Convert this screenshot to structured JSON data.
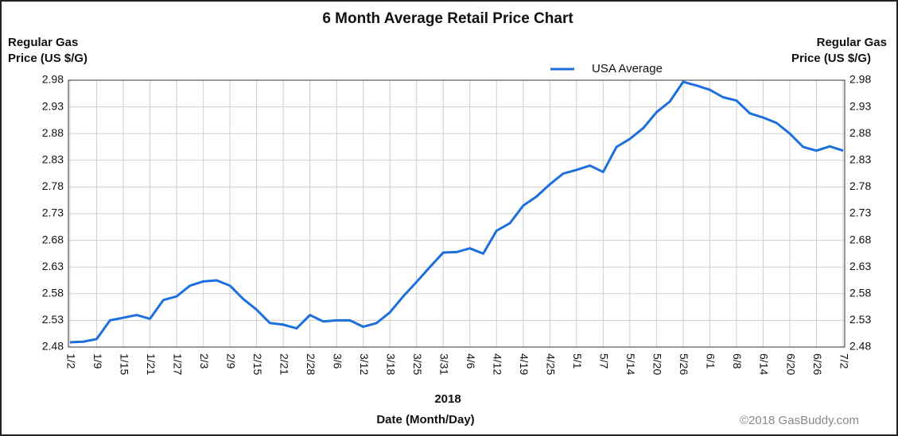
{
  "chart_data": {
    "type": "line",
    "title": "6 Month Average Retail Price Chart",
    "y_label": [
      "Regular Gas",
      "Price (US $/G)"
    ],
    "y2_label": [
      "Regular Gas",
      "Price (US $/G)"
    ],
    "x_label": [
      "2018",
      "Date (Month/Day)"
    ],
    "credit": "©2018 GasBuddy.com",
    "categories": [
      "1/2",
      null,
      "1/9",
      null,
      "1/15",
      null,
      "1/21",
      null,
      "1/27",
      null,
      "2/3",
      null,
      "2/9",
      null,
      "2/15",
      null,
      "2/21",
      null,
      "2/28",
      null,
      "3/6",
      null,
      "3/12",
      null,
      "3/18",
      null,
      "3/25",
      null,
      "3/31",
      null,
      "4/6",
      null,
      "4/12",
      null,
      "4/19",
      null,
      "4/25",
      null,
      "5/1",
      null,
      "5/7",
      null,
      "5/14",
      null,
      "5/20",
      null,
      "5/26",
      null,
      "6/1",
      null,
      "6/8",
      null,
      "6/14",
      null,
      "6/20",
      null,
      "6/26",
      null,
      "7/2"
    ],
    "series": [
      {
        "name": "USA Average",
        "color": "#1c6fdc",
        "values": [
          2.489,
          2.49,
          2.495,
          2.53,
          2.535,
          2.54,
          2.533,
          2.568,
          2.575,
          2.595,
          2.603,
          2.605,
          2.595,
          2.57,
          2.55,
          2.525,
          2.522,
          2.515,
          2.54,
          2.528,
          2.53,
          2.53,
          2.518,
          2.525,
          2.545,
          2.575,
          2.602,
          2.63,
          2.657,
          2.658,
          2.665,
          2.655,
          2.698,
          2.712,
          2.745,
          2.762,
          2.785,
          2.805,
          2.812,
          2.82,
          2.808,
          2.855,
          2.87,
          2.89,
          2.92,
          2.94,
          2.977,
          2.97,
          2.962,
          2.948,
          2.942,
          2.918,
          2.91,
          2.9,
          2.88,
          2.855,
          2.848,
          2.856,
          2.848
        ]
      }
    ],
    "ylim": [
      2.48,
      2.98
    ],
    "yticks": [
      2.48,
      2.53,
      2.58,
      2.63,
      2.68,
      2.73,
      2.78,
      2.83,
      2.88,
      2.93,
      2.98
    ],
    "y2lim": [
      2.48,
      2.98
    ],
    "y2ticks": [
      2.48,
      2.53,
      2.58,
      2.63,
      2.68,
      2.73,
      2.78,
      2.83,
      2.88,
      2.93,
      2.98
    ],
    "grid": true,
    "legend": "top"
  }
}
